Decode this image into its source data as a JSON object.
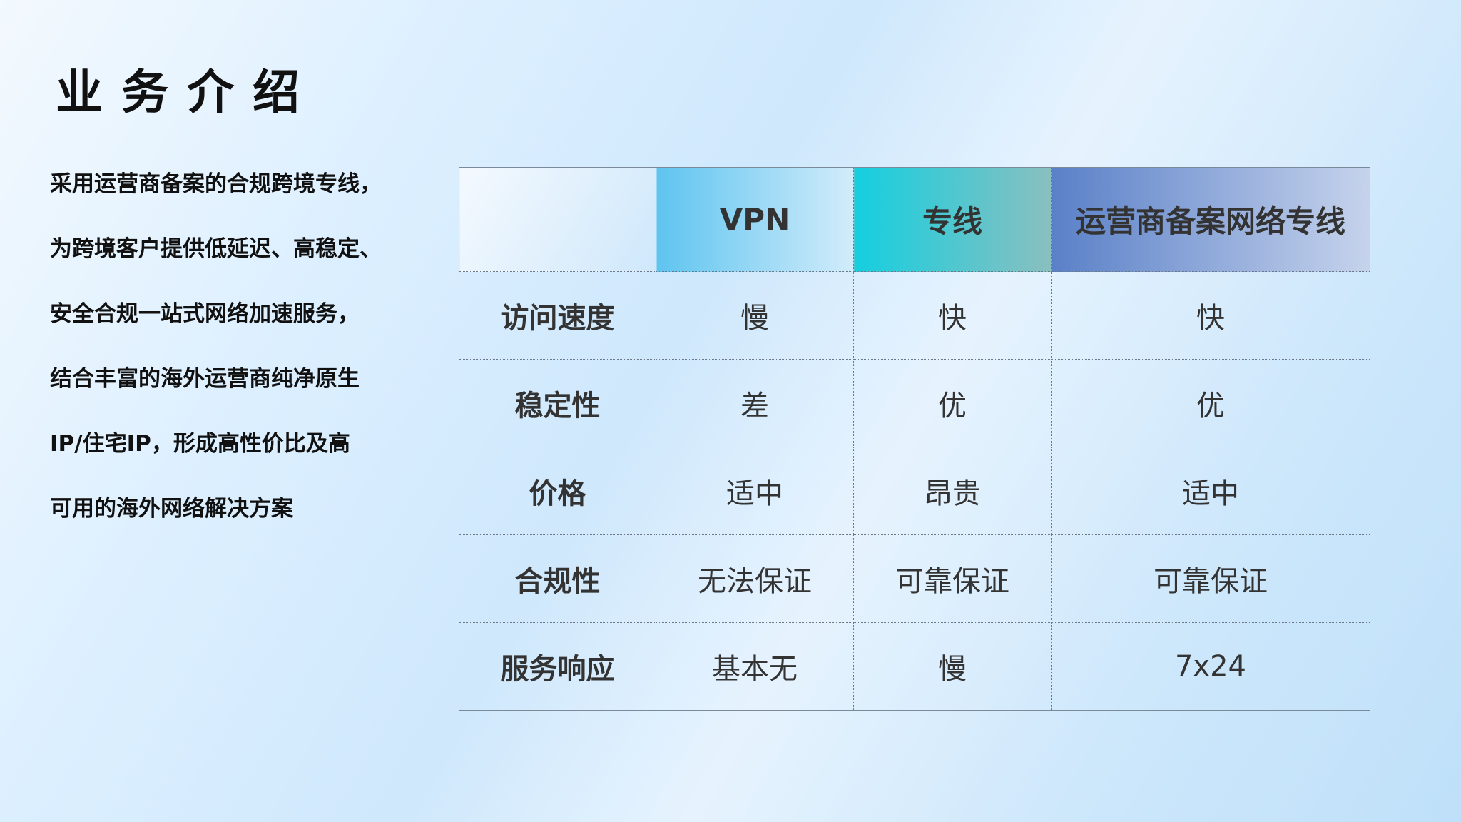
{
  "title": "业务介绍",
  "description": [
    "采用运营商备案的合规跨境专线，",
    "为跨境客户提供低延迟、高稳定、",
    "安全合规一站式网络加速服务，",
    "结合丰富的海外运营商纯净原生",
    "IP/住宅IP，形成高性价比及高",
    "可用的海外网络解决方案"
  ],
  "table": {
    "headers": [
      "",
      "VPN",
      "专线",
      "运营商备案网络专线"
    ],
    "rows": [
      [
        "访问速度",
        "慢",
        "快",
        "快"
      ],
      [
        "稳定性",
        "差",
        "优",
        "优"
      ],
      [
        "价格",
        "适中",
        "昂贵",
        "适中"
      ],
      [
        "合规性",
        "无法保证",
        "可靠保证",
        "可靠保证"
      ],
      [
        "服务响应",
        "基本无",
        "慢",
        "7x24"
      ]
    ]
  },
  "colors": {
    "vpn_header": "#5ec4ef",
    "line_header": "#14cfdf",
    "carrier_header": "#5a80c8"
  }
}
